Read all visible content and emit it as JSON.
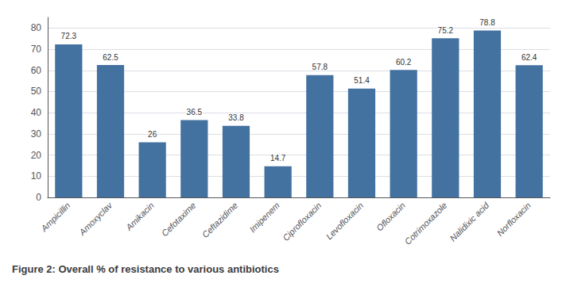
{
  "chart_data": {
    "type": "bar",
    "title": "Figure 2: Overall % of resistance to various antibiotics",
    "categories": [
      "Ampicillin",
      "Amoxyclav",
      "Amikacin",
      "Cefotaxime",
      "Ceftazidime",
      "Imipenem",
      "Ciprofloxacin",
      "Levofloxacin",
      "Ofloxacin",
      "Cotrimoxazole",
      "Nalidixic acid",
      "Norfloxacin"
    ],
    "values": [
      72.3,
      62.5,
      26,
      36.5,
      33.8,
      14.7,
      57.8,
      51.4,
      60.2,
      75.2,
      78.8,
      62.4
    ],
    "color": "#4472a0",
    "ylim": [
      0,
      85
    ],
    "yticks": [
      0,
      10,
      20,
      30,
      40,
      50,
      60,
      70,
      80
    ],
    "grid": true,
    "data_labels": true
  }
}
